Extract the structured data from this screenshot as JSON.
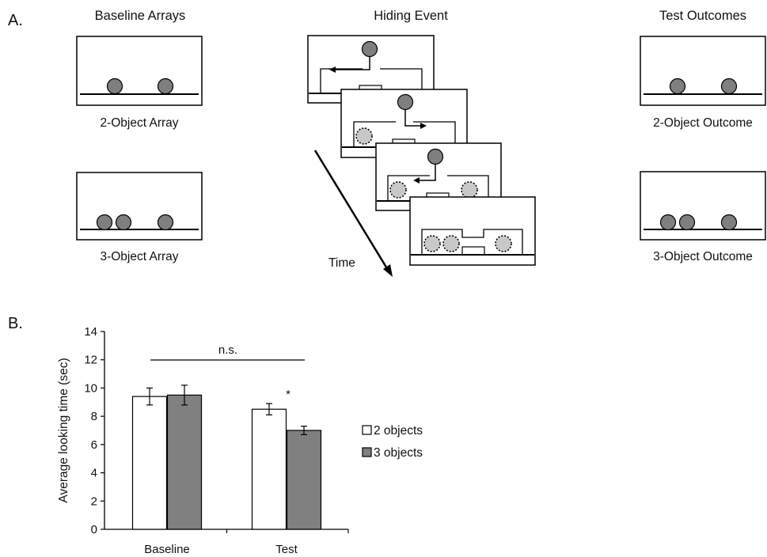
{
  "panel_a": {
    "label": "A.",
    "baseline": {
      "heading": "Baseline Arrays",
      "captions": [
        "2-Object Array",
        "3-Object Array"
      ]
    },
    "hiding": {
      "heading": "Hiding Event",
      "time_label": "Time"
    },
    "test": {
      "heading": "Test Outcomes",
      "captions": [
        "2-Object Outcome",
        "3-Object Outcome"
      ]
    },
    "colors": {
      "object_fill": "#7f7f7f",
      "hidden_object_fill": "#c8c8c8",
      "line": "#000000"
    }
  },
  "panel_b": {
    "label": "B."
  },
  "chart_data": {
    "type": "bar",
    "categories": [
      "Baseline",
      "Test"
    ],
    "series": [
      {
        "name": "2 objects",
        "values": [
          9.4,
          8.5
        ],
        "errors": [
          0.6,
          0.4
        ],
        "color": "#ffffff"
      },
      {
        "name": "3 objects",
        "values": [
          9.5,
          7.0
        ],
        "errors": [
          0.7,
          0.3
        ],
        "color": "#808080"
      }
    ],
    "ylabel": "Average looking time (sec)",
    "xlabel": "",
    "ylim": [
      0,
      14
    ],
    "yticks": [
      0,
      2,
      4,
      6,
      8,
      10,
      12,
      14
    ],
    "grid": false,
    "legend_position": "right",
    "annotations": [
      {
        "text": "n.s.",
        "type": "bracket",
        "from": "Baseline",
        "to": "Test"
      },
      {
        "text": "*",
        "type": "significance",
        "category": "Test"
      }
    ]
  }
}
